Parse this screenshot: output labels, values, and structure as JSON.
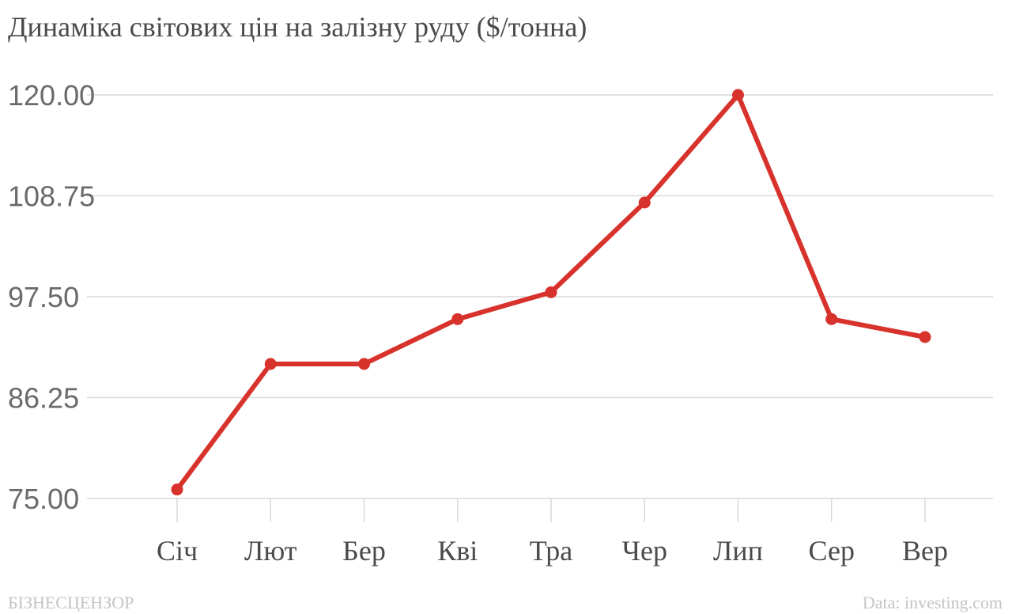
{
  "chart_data": {
    "type": "line",
    "title": "Динаміка світових цін на залізну руду ($/тонна)",
    "xlabel": "",
    "ylabel": "",
    "categories": [
      "Січ",
      "Лют",
      "Бер",
      "Кві",
      "Тра",
      "Чер",
      "Лип",
      "Сер",
      "Вер"
    ],
    "series": [
      {
        "values": [
          76.0,
          90.0,
          90.0,
          95.0,
          98.0,
          108.0,
          120.0,
          95.0,
          93.0
        ]
      }
    ],
    "ylim": [
      75.0,
      120.0
    ],
    "yticks": [
      "75.00",
      "86.25",
      "97.50",
      "108.75",
      "120.00"
    ],
    "grid": true,
    "legend": "none",
    "line_color": "#d7322b",
    "grid_color": "#d9d9d9"
  },
  "footer": {
    "brand": "БІЗНЕСЦЕНЗОР",
    "source": "Data: investing.com"
  }
}
